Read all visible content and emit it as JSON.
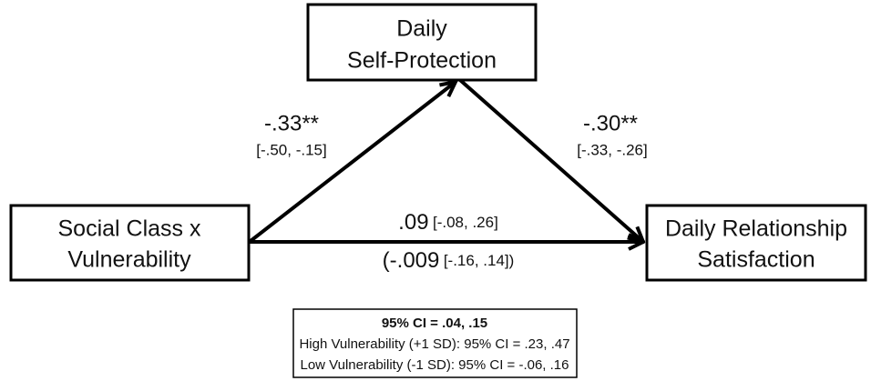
{
  "nodes": [
    {
      "lines": [
        "Daily",
        "Self-Protection"
      ]
    },
    {
      "lines": [
        "Social Class x",
        "Vulnerability"
      ]
    },
    {
      "lines": [
        "Daily Relationship",
        "Satisfaction"
      ]
    }
  ],
  "paths": {
    "a": {
      "coef": "-.33**",
      "ci": "[-.50, -.15]"
    },
    "b": {
      "coef": "-.30**",
      "ci": "[-.33, -.26]"
    },
    "direct": {
      "coef": ".09",
      "ci": "[-.08, .26]"
    },
    "total": {
      "coef": "(-.009",
      "ci": "[-.16, .14])"
    }
  },
  "note": {
    "title": "95% CI = .04, .15",
    "lines": [
      "High Vulnerability (+1 SD): 95% CI = .23, .47",
      "Low Vulnerability (-1 SD): 95% CI = -.06, .16"
    ]
  }
}
